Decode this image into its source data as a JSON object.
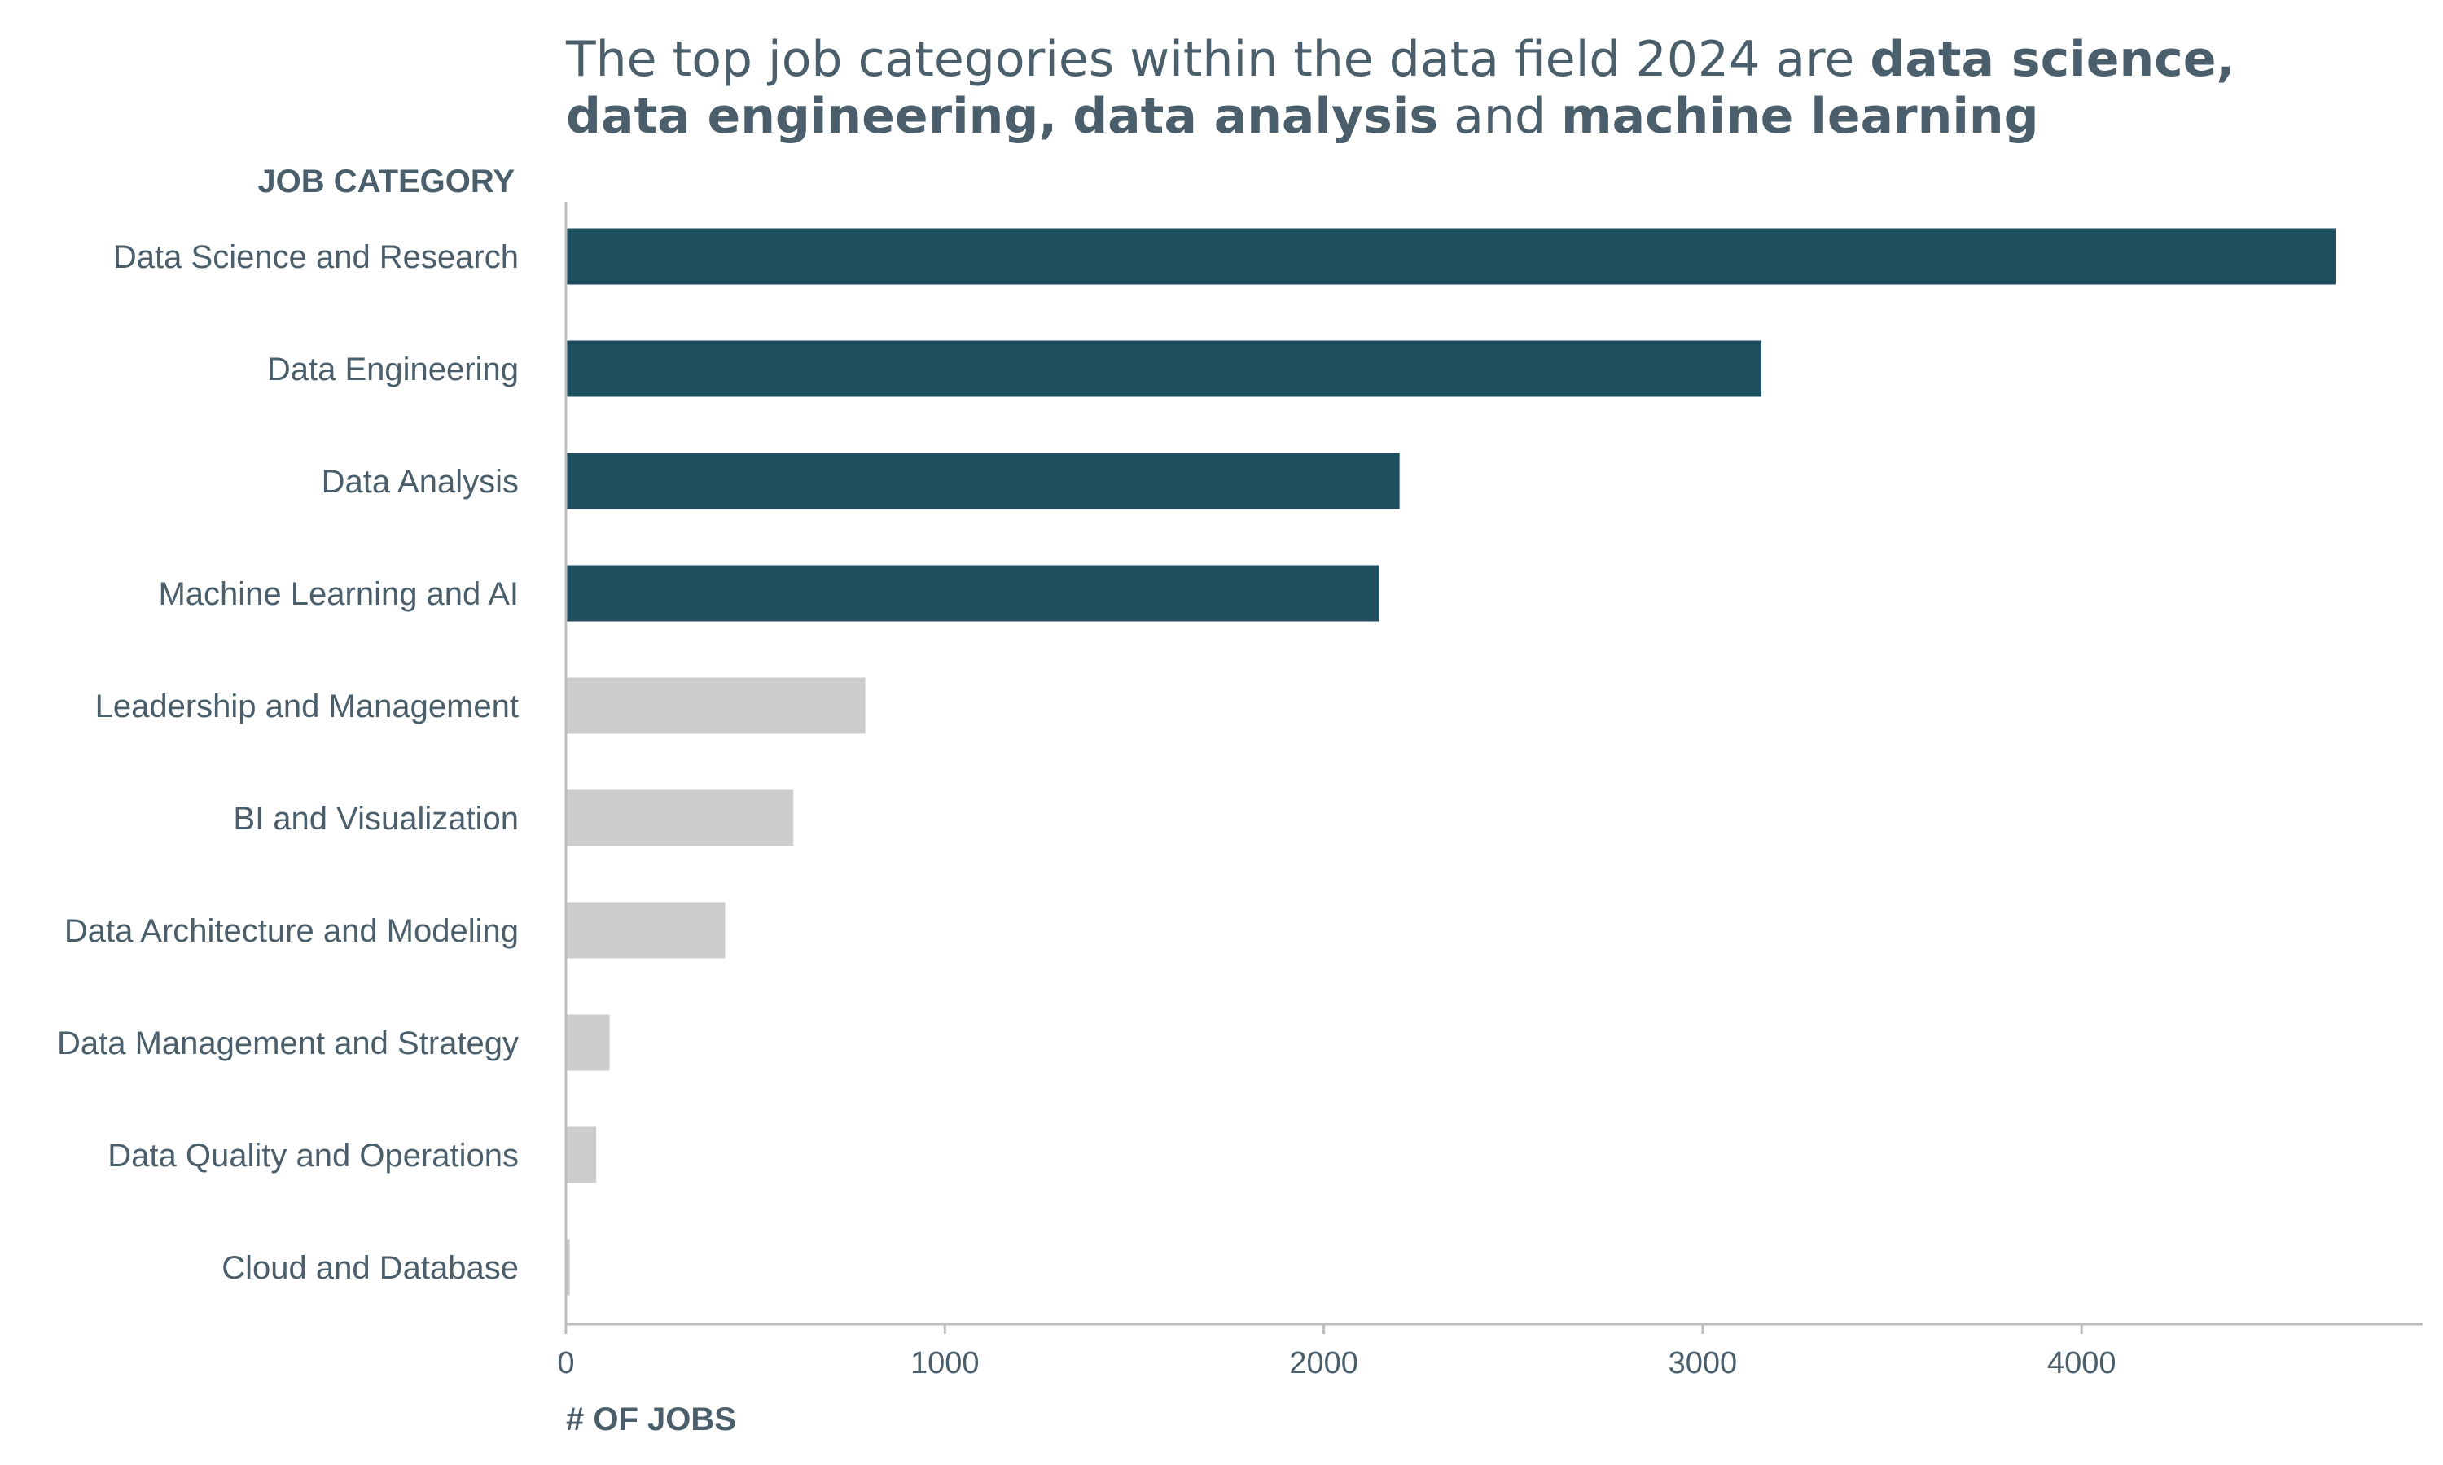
{
  "title": {
    "line1": [
      {
        "text": "The top job categories within the data field 2024 are ",
        "bold": false
      },
      {
        "text": "data science,",
        "bold": true
      }
    ],
    "line2": [
      {
        "text": "data engineering,",
        "bold": true
      },
      {
        "text": " ",
        "bold": false
      },
      {
        "text": "data analysis",
        "bold": true
      },
      {
        "text": " and ",
        "bold": false
      },
      {
        "text": "machine learning",
        "bold": true
      }
    ]
  },
  "colors": {
    "highlight": "#1f4e5f",
    "muted": "#cccccc",
    "text": "#4a5f6b",
    "axis": "#bdbdbd"
  },
  "chart_data": {
    "type": "bar",
    "orientation": "horizontal",
    "ylabel": "JOB CATEGORY",
    "xlabel": "# OF JOBS",
    "xlim": [
      0,
      4900
    ],
    "xticks": [
      0,
      1000,
      2000,
      3000,
      4000
    ],
    "grid": false,
    "categories": [
      "Data Science and Research",
      "Data Engineering",
      "Data Analysis",
      "Machine Learning and AI",
      "Leadership and Management",
      "BI and Visualization",
      "Data Architecture and Modeling",
      "Data Management and Strategy",
      "Data Quality and Operations",
      "Cloud and Database"
    ],
    "values": [
      4670,
      3155,
      2200,
      2145,
      790,
      600,
      420,
      115,
      80,
      10
    ],
    "highlighted": [
      true,
      true,
      true,
      true,
      false,
      false,
      false,
      false,
      false,
      false
    ]
  }
}
